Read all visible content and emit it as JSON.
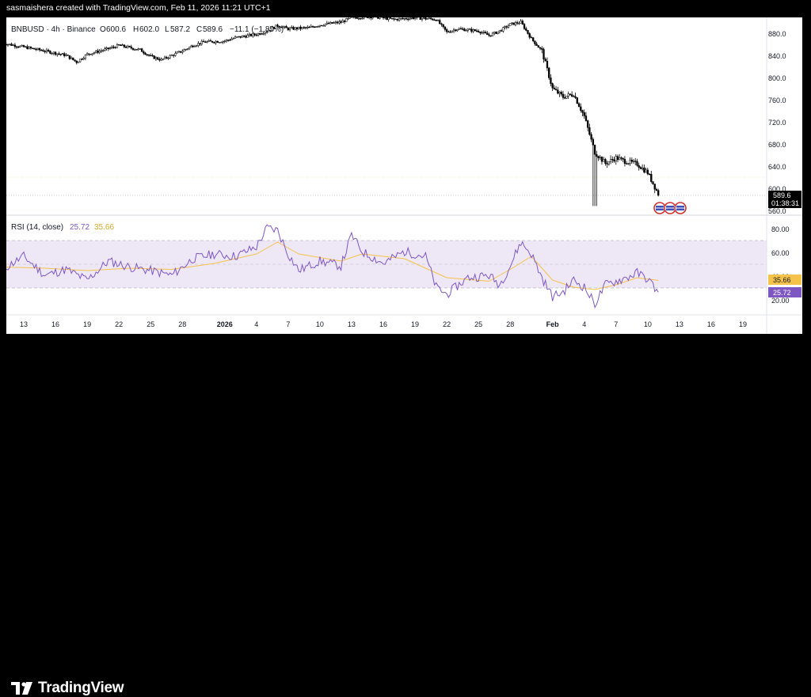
{
  "header": {
    "text": "sasmaishera created with TradingView.com, Feb 11, 2026 11:21 UTC+1"
  },
  "brand": {
    "name": "TradingView"
  },
  "price_panel": {
    "legend": {
      "symbol": "BNBUSD · 4h · Binance",
      "o_label": "O",
      "o_value": "600.6",
      "h_label": "H",
      "h_value": "602.0",
      "l_label": "L",
      "l_value": "587.2",
      "c_label": "C",
      "c_value": "589.6",
      "change": "−11.1 (−1.85%)"
    },
    "axis_ticks": [
      "880.0",
      "840.0",
      "800.0",
      "760.0",
      "720.0",
      "680.0",
      "640.0",
      "600.0",
      "560.0"
    ],
    "last_price": "589.6",
    "countdown": "01:38:31",
    "colors": {
      "candle": "#000000",
      "label_bg": "#000000",
      "flag_red": "#d32f2f",
      "flag_blue": "#3f51b5"
    }
  },
  "rsi_panel": {
    "legend": {
      "name": "RSI (14, close)",
      "rsi_value": "25.72",
      "ma_value": "35.66"
    },
    "axis_ticks": [
      "80.00",
      "60.00",
      "40.00",
      "20.00"
    ],
    "rsi_label": "25.72",
    "ma_label": "35.66",
    "colors": {
      "rsi": "#7e57c2",
      "ma": "#f5c34a",
      "band": "#ede7f6"
    }
  },
  "time_axis": {
    "labels": [
      "13",
      "16",
      "19",
      "22",
      "25",
      "28",
      "2026",
      "4",
      "7",
      "10",
      "13",
      "16",
      "19",
      "22",
      "25",
      "28",
      "Feb",
      "4",
      "7",
      "10",
      "13",
      "16",
      "19"
    ]
  },
  "chart_data": [
    {
      "type": "candlestick",
      "title": "BNBUSD · 4h · Binance",
      "ylim": [
        555,
        905
      ],
      "x_range": [
        "Dec 11",
        "Feb 20"
      ],
      "close_series_approx": [
        {
          "x": "Dec 11",
          "y": 862
        },
        {
          "x": "Dec 13",
          "y": 855
        },
        {
          "x": "Dec 15",
          "y": 848
        },
        {
          "x": "Dec 17",
          "y": 840
        },
        {
          "x": "Dec 18",
          "y": 828
        },
        {
          "x": "Dec 19",
          "y": 842
        },
        {
          "x": "Dec 21",
          "y": 852
        },
        {
          "x": "Dec 22",
          "y": 858
        },
        {
          "x": "Dec 24",
          "y": 850
        },
        {
          "x": "Dec 25",
          "y": 838
        },
        {
          "x": "Dec 26",
          "y": 832
        },
        {
          "x": "Dec 28",
          "y": 848
        },
        {
          "x": "Dec 29",
          "y": 858
        },
        {
          "x": "Dec 30",
          "y": 864
        },
        {
          "x": "Jan 1",
          "y": 866
        },
        {
          "x": "Jan 2",
          "y": 872
        },
        {
          "x": "Jan 4",
          "y": 878
        },
        {
          "x": "Jan 5",
          "y": 884
        },
        {
          "x": "Jan 6",
          "y": 894
        },
        {
          "x": "Jan 7",
          "y": 888
        },
        {
          "x": "Jan 9",
          "y": 890
        },
        {
          "x": "Jan 10",
          "y": 895
        },
        {
          "x": "Jan 12",
          "y": 900
        },
        {
          "x": "Jan 13",
          "y": 908
        },
        {
          "x": "Jan 15",
          "y": 910
        },
        {
          "x": "Jan 17",
          "y": 905
        },
        {
          "x": "Jan 19",
          "y": 908
        },
        {
          "x": "Jan 21",
          "y": 905
        },
        {
          "x": "Jan 22",
          "y": 882
        },
        {
          "x": "Jan 23",
          "y": 888
        },
        {
          "x": "Jan 25",
          "y": 884
        },
        {
          "x": "Jan 26",
          "y": 876
        },
        {
          "x": "Jan 27",
          "y": 884
        },
        {
          "x": "Jan 28",
          "y": 896
        },
        {
          "x": "Jan 29",
          "y": 900
        },
        {
          "x": "Jan 30",
          "y": 870
        },
        {
          "x": "Jan 31",
          "y": 848
        },
        {
          "x": "Feb 1",
          "y": 780
        },
        {
          "x": "Feb 2",
          "y": 765
        },
        {
          "x": "Feb 3",
          "y": 770
        },
        {
          "x": "Feb 4",
          "y": 730
        },
        {
          "x": "Feb 5",
          "y": 665
        },
        {
          "x": "Feb 6",
          "y": 645
        },
        {
          "x": "Feb 7",
          "y": 655
        },
        {
          "x": "Feb 8",
          "y": 648
        },
        {
          "x": "Feb 9",
          "y": 644
        },
        {
          "x": "Feb 10",
          "y": 628
        },
        {
          "x": "Feb 11",
          "y": 589.6
        }
      ],
      "last": {
        "open": 600.6,
        "high": 602.0,
        "low": 587.2,
        "close": 589.6,
        "change": -11.1,
        "change_pct": -1.85
      }
    },
    {
      "type": "line",
      "title": "RSI (14, close)",
      "ylim": [
        10,
        90
      ],
      "bands": [
        30,
        50,
        70
      ],
      "series": [
        {
          "name": "RSI",
          "points": [
            {
              "x": "Dec 11",
              "y": 45
            },
            {
              "x": "Dec 13",
              "y": 56
            },
            {
              "x": "Dec 15",
              "y": 40
            },
            {
              "x": "Dec 17",
              "y": 45
            },
            {
              "x": "Dec 19",
              "y": 36
            },
            {
              "x": "Dec 21",
              "y": 52
            },
            {
              "x": "Dec 23",
              "y": 47
            },
            {
              "x": "Dec 25",
              "y": 44
            },
            {
              "x": "Dec 27",
              "y": 40
            },
            {
              "x": "Dec 29",
              "y": 54
            },
            {
              "x": "Dec 31",
              "y": 58
            },
            {
              "x": "Jan 2",
              "y": 56
            },
            {
              "x": "Jan 4",
              "y": 64
            },
            {
              "x": "Jan 5",
              "y": 80
            },
            {
              "x": "Jan 6",
              "y": 78
            },
            {
              "x": "Jan 7",
              "y": 58
            },
            {
              "x": "Jan 8",
              "y": 44
            },
            {
              "x": "Jan 10",
              "y": 52
            },
            {
              "x": "Jan 12",
              "y": 48
            },
            {
              "x": "Jan 13",
              "y": 74
            },
            {
              "x": "Jan 14",
              "y": 60
            },
            {
              "x": "Jan 16",
              "y": 50
            },
            {
              "x": "Jan 18",
              "y": 60
            },
            {
              "x": "Jan 20",
              "y": 56
            },
            {
              "x": "Jan 21",
              "y": 30
            },
            {
              "x": "Jan 22",
              "y": 24
            },
            {
              "x": "Jan 24",
              "y": 38
            },
            {
              "x": "Jan 26",
              "y": 40
            },
            {
              "x": "Jan 27",
              "y": 32
            },
            {
              "x": "Jan 28",
              "y": 48
            },
            {
              "x": "Jan 29",
              "y": 68
            },
            {
              "x": "Jan 30",
              "y": 58
            },
            {
              "x": "Jan 31",
              "y": 38
            },
            {
              "x": "Feb 1",
              "y": 22
            },
            {
              "x": "Feb 2",
              "y": 26
            },
            {
              "x": "Feb 3",
              "y": 36
            },
            {
              "x": "Feb 4",
              "y": 30
            },
            {
              "x": "Feb 5",
              "y": 16
            },
            {
              "x": "Feb 6",
              "y": 32
            },
            {
              "x": "Feb 7",
              "y": 35
            },
            {
              "x": "Feb 8",
              "y": 38
            },
            {
              "x": "Feb 9",
              "y": 42
            },
            {
              "x": "Feb 10",
              "y": 37
            },
            {
              "x": "Feb 11",
              "y": 25.72
            }
          ]
        },
        {
          "name": "RSI MA",
          "points": [
            {
              "x": "Dec 11",
              "y": 47
            },
            {
              "x": "Dec 15",
              "y": 46
            },
            {
              "x": "Dec 19",
              "y": 44
            },
            {
              "x": "Dec 23",
              "y": 46
            },
            {
              "x": "Dec 27",
              "y": 45
            },
            {
              "x": "Dec 31",
              "y": 50
            },
            {
              "x": "Jan 4",
              "y": 58
            },
            {
              "x": "Jan 6",
              "y": 68
            },
            {
              "x": "Jan 8",
              "y": 58
            },
            {
              "x": "Jan 12",
              "y": 52
            },
            {
              "x": "Jan 14",
              "y": 58
            },
            {
              "x": "Jan 18",
              "y": 54
            },
            {
              "x": "Jan 22",
              "y": 38
            },
            {
              "x": "Jan 26",
              "y": 35
            },
            {
              "x": "Jan 28",
              "y": 45
            },
            {
              "x": "Jan 30",
              "y": 56
            },
            {
              "x": "Feb 1",
              "y": 36
            },
            {
              "x": "Feb 3",
              "y": 30
            },
            {
              "x": "Feb 5",
              "y": 28
            },
            {
              "x": "Feb 7",
              "y": 32
            },
            {
              "x": "Feb 9",
              "y": 38
            },
            {
              "x": "Feb 11",
              "y": 35.66
            }
          ]
        }
      ]
    }
  ]
}
